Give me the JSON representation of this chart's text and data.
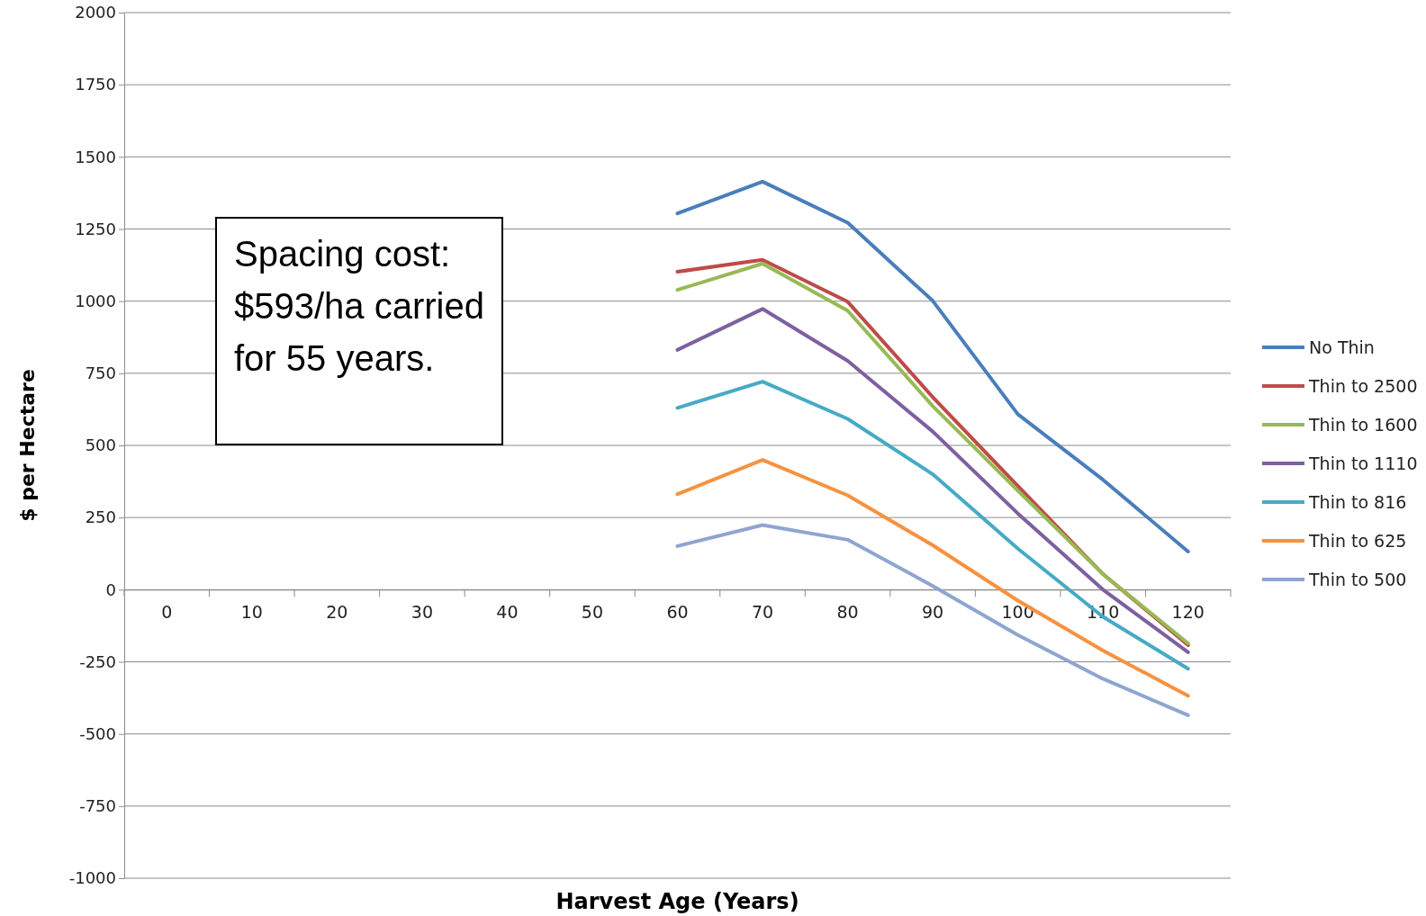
{
  "chart_data": {
    "type": "line",
    "xlabel": "Harvest Age (Years)",
    "ylabel": "$  per Hectare",
    "categories": [
      "0",
      "10",
      "20",
      "30",
      "40",
      "50",
      "60",
      "70",
      "80",
      "90",
      "100",
      "110",
      "120"
    ],
    "ylim": [
      -1000,
      2000
    ],
    "yticks": [
      -1000,
      -750,
      -500,
      -250,
      0,
      250,
      500,
      750,
      1000,
      1250,
      1500,
      1750,
      2000
    ],
    "grid": "y",
    "legend": "right",
    "marker": "none",
    "annotations": [
      "Spacing cost: $593/ha carried for 55 years."
    ],
    "series": [
      {
        "name": "No Thin",
        "color": "#4a7ebb",
        "values": [
          null,
          null,
          null,
          null,
          null,
          null,
          1304,
          1414,
          1272,
          1001,
          608,
          381,
          132
        ]
      },
      {
        "name": "Thin to 2500",
        "color": "#be4b48",
        "values": [
          null,
          null,
          null,
          null,
          null,
          null,
          1102,
          1143,
          998,
          667,
          359,
          54,
          -192
        ]
      },
      {
        "name": "Thin to 1600",
        "color": "#98b954",
        "values": [
          null,
          null,
          null,
          null,
          null,
          null,
          1039,
          1130,
          967,
          636,
          343,
          54,
          -186
        ]
      },
      {
        "name": "Thin to 1110",
        "color": "#7d60a0",
        "values": [
          null,
          null,
          null,
          null,
          null,
          null,
          831,
          973,
          793,
          548,
          264,
          0,
          -217
        ]
      },
      {
        "name": "Thin to 816",
        "color": "#46aac5",
        "values": [
          null,
          null,
          null,
          null,
          null,
          null,
          630,
          721,
          592,
          400,
          142,
          -94,
          -274
        ]
      },
      {
        "name": "Thin to 625",
        "color": "#f69240",
        "values": [
          null,
          null,
          null,
          null,
          null,
          null,
          331,
          450,
          327,
          154,
          -38,
          -211,
          -368
        ]
      },
      {
        "name": "Thin to 500",
        "color": "#8ea5d0",
        "values": [
          null,
          null,
          null,
          null,
          null,
          null,
          151,
          224,
          173,
          13,
          -157,
          -309,
          -435
        ]
      }
    ]
  }
}
